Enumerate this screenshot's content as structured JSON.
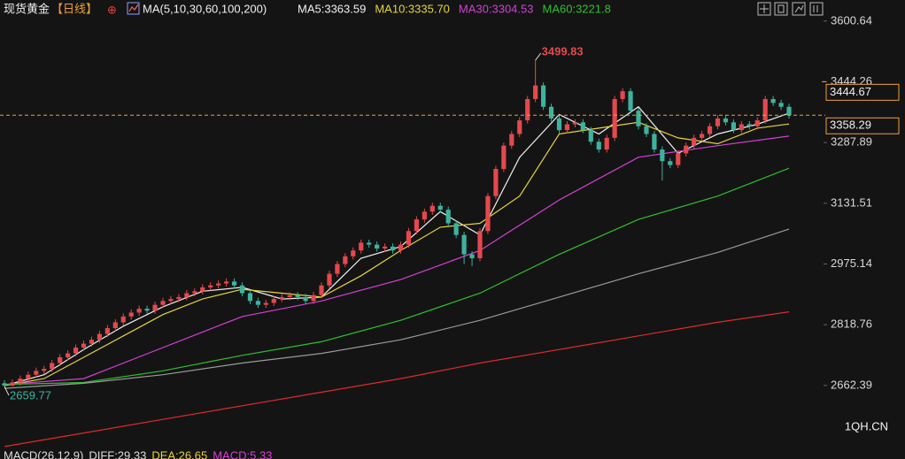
{
  "chart_data": {
    "type": "candlestick",
    "title": "现货黄金",
    "period": "【日线】",
    "indicator": "MA(5,10,30,60,100,200)",
    "up_color": "#e5484d",
    "down_color": "#3db39e",
    "ylim": [
      2473,
      3655
    ],
    "yticks": [
      3600.64,
      3444.26,
      3287.89,
      3131.51,
      2975.14,
      2818.76,
      2662.39
    ],
    "grid": false,
    "open": [
      2668,
      2662,
      2670,
      2680,
      2690,
      2700,
      2705,
      2720,
      2735,
      2745,
      2760,
      2770,
      2780,
      2795,
      2810,
      2825,
      2840,
      2850,
      2860,
      2855,
      2870,
      2880,
      2885,
      2890,
      2900,
      2905,
      2915,
      2920,
      2925,
      2930,
      2920,
      2900,
      2880,
      2870,
      2875,
      2885,
      2890,
      2895,
      2890,
      2880,
      2895,
      2920,
      2950,
      2975,
      2995,
      3010,
      3030,
      3025,
      3015,
      3020,
      3010,
      3025,
      3060,
      3090,
      3110,
      3125,
      3115,
      3080,
      3050,
      3000,
      2990,
      3060,
      3150,
      3220,
      3280,
      3310,
      3345,
      3400,
      3435,
      3380,
      3350,
      3320,
      3335,
      3340,
      3320,
      3290,
      3270,
      3300,
      3400,
      3420,
      3370,
      3330,
      3310,
      3270,
      3240,
      3230,
      3260,
      3280,
      3300,
      3310,
      3330,
      3350,
      3340,
      3320,
      3335,
      3330,
      3345,
      3400,
      3390,
      3380
    ],
    "high": [
      2676,
      2678,
      2688,
      2698,
      2708,
      2713,
      2728,
      2743,
      2753,
      2768,
      2778,
      2788,
      2803,
      2818,
      2833,
      2848,
      2858,
      2868,
      2868,
      2878,
      2888,
      2893,
      2898,
      2908,
      2913,
      2923,
      2928,
      2933,
      2938,
      2938,
      2928,
      2908,
      2888,
      2883,
      2893,
      2898,
      2903,
      2903,
      2898,
      2903,
      2928,
      2958,
      2983,
      3003,
      3018,
      3038,
      3038,
      3033,
      3028,
      3028,
      3033,
      3068,
      3098,
      3118,
      3133,
      3133,
      3123,
      3088,
      3058,
      3008,
      3068,
      3158,
      3228,
      3288,
      3318,
      3353,
      3408,
      3499.83,
      3443,
      3388,
      3358,
      3343,
      3348,
      3348,
      3328,
      3298,
      3308,
      3408,
      3428,
      3428,
      3378,
      3338,
      3318,
      3278,
      3248,
      3268,
      3288,
      3308,
      3318,
      3338,
      3358,
      3358,
      3348,
      3343,
      3343,
      3353,
      3408,
      3408,
      3398,
      3388
    ],
    "low": [
      2659.77,
      2660,
      2662,
      2672,
      2682,
      2692,
      2697,
      2712,
      2727,
      2737,
      2752,
      2762,
      2772,
      2787,
      2802,
      2817,
      2832,
      2842,
      2847,
      2847,
      2862,
      2872,
      2877,
      2882,
      2892,
      2897,
      2907,
      2912,
      2917,
      2912,
      2892,
      2872,
      2862,
      2862,
      2867,
      2877,
      2882,
      2882,
      2872,
      2872,
      2887,
      2912,
      2942,
      2967,
      2987,
      3002,
      3017,
      3007,
      3007,
      3002,
      3002,
      3017,
      3052,
      3082,
      3102,
      3107,
      3072,
      3042,
      2975,
      2970,
      2982,
      3052,
      3142,
      3212,
      3272,
      3302,
      3337,
      3392,
      3372,
      3342,
      3312,
      3312,
      3327,
      3312,
      3282,
      3262,
      3262,
      3292,
      3392,
      3362,
      3322,
      3302,
      3262,
      3190,
      3222,
      3222,
      3252,
      3272,
      3292,
      3302,
      3322,
      3332,
      3312,
      3312,
      3322,
      3322,
      3337,
      3382,
      3372,
      3350
    ],
    "close": [
      2662,
      2670,
      2680,
      2690,
      2700,
      2705,
      2720,
      2735,
      2745,
      2760,
      2770,
      2780,
      2795,
      2810,
      2825,
      2840,
      2850,
      2860,
      2855,
      2870,
      2880,
      2885,
      2890,
      2900,
      2905,
      2915,
      2920,
      2925,
      2930,
      2920,
      2900,
      2880,
      2870,
      2875,
      2885,
      2890,
      2895,
      2890,
      2880,
      2895,
      2920,
      2950,
      2975,
      2995,
      3010,
      3030,
      3025,
      3015,
      3020,
      3010,
      3025,
      3060,
      3090,
      3110,
      3125,
      3115,
      3080,
      3050,
      3000,
      2990,
      3060,
      3150,
      3220,
      3280,
      3310,
      3345,
      3400,
      3435,
      3380,
      3350,
      3320,
      3335,
      3340,
      3320,
      3290,
      3270,
      3300,
      3400,
      3420,
      3370,
      3330,
      3310,
      3270,
      3240,
      3230,
      3260,
      3280,
      3300,
      3310,
      3330,
      3350,
      3340,
      3320,
      3335,
      3330,
      3345,
      3400,
      3390,
      3380,
      3358.29
    ],
    "series": [
      {
        "name": "MA5:3363.59",
        "color": "#f0f0f0",
        "x": [
          0,
          5,
          10,
          15,
          20,
          25,
          30,
          35,
          40,
          45,
          50,
          55,
          60,
          65,
          70,
          75,
          80,
          85,
          90,
          95,
          99
        ],
        "values": [
          2662,
          2690,
          2755,
          2815,
          2865,
          2905,
          2915,
          2885,
          2890,
          2990,
          3020,
          3110,
          3050,
          3250,
          3360,
          3310,
          3380,
          3260,
          3310,
          3335,
          3363.59
        ]
      },
      {
        "name": "MA10:3335.70",
        "color": "#e6d33c",
        "x": [
          0,
          5,
          10,
          15,
          20,
          25,
          30,
          35,
          40,
          45,
          50,
          55,
          60,
          65,
          70,
          75,
          80,
          85,
          90,
          95,
          99
        ],
        "values": [
          2662,
          2680,
          2735,
          2790,
          2845,
          2885,
          2910,
          2900,
          2890,
          2945,
          3010,
          3070,
          3080,
          3150,
          3310,
          3325,
          3340,
          3300,
          3285,
          3325,
          3335.7
        ]
      },
      {
        "name": "MA30:3304.53",
        "color": "#d63fd6",
        "x": [
          0,
          10,
          20,
          30,
          40,
          50,
          60,
          70,
          80,
          90,
          99
        ],
        "values": [
          2665,
          2680,
          2760,
          2840,
          2880,
          2935,
          3010,
          3140,
          3250,
          3280,
          3304.53
        ]
      },
      {
        "name": "MA60:3221.8",
        "color": "#2fc02f",
        "x": [
          0,
          10,
          20,
          30,
          40,
          50,
          60,
          70,
          80,
          90,
          99
        ],
        "values": [
          2665,
          2670,
          2700,
          2740,
          2775,
          2830,
          2900,
          3000,
          3090,
          3150,
          3221.8
        ]
      },
      {
        "color": "#9a9a9a",
        "x": [
          0,
          10,
          20,
          30,
          40,
          50,
          60,
          70,
          80,
          90,
          99
        ],
        "values": [
          2655,
          2668,
          2690,
          2720,
          2745,
          2780,
          2830,
          2890,
          2950,
          3005,
          3065
        ]
      },
      {
        "color": "#e02a2a",
        "x": [
          0,
          10,
          20,
          30,
          40,
          50,
          60,
          70,
          80,
          90,
          99
        ],
        "values": [
          2505,
          2540,
          2575,
          2610,
          2645,
          2680,
          2720,
          2755,
          2790,
          2825,
          2852
        ]
      }
    ],
    "price_marker": 3444.67,
    "price_marker_color": "#f0a030",
    "macd_legend": [
      {
        "text": "MACD(26,12,9)",
        "color": "#dddddd"
      },
      {
        "text": "DIFF:29.33",
        "color": "#dddddd"
      },
      {
        "text": "DEA:26.65",
        "color": "#e6d33c"
      },
      {
        "text": "MACD:5.33",
        "color": "#d63fd6"
      }
    ],
    "watermark": "1QH.CN"
  }
}
